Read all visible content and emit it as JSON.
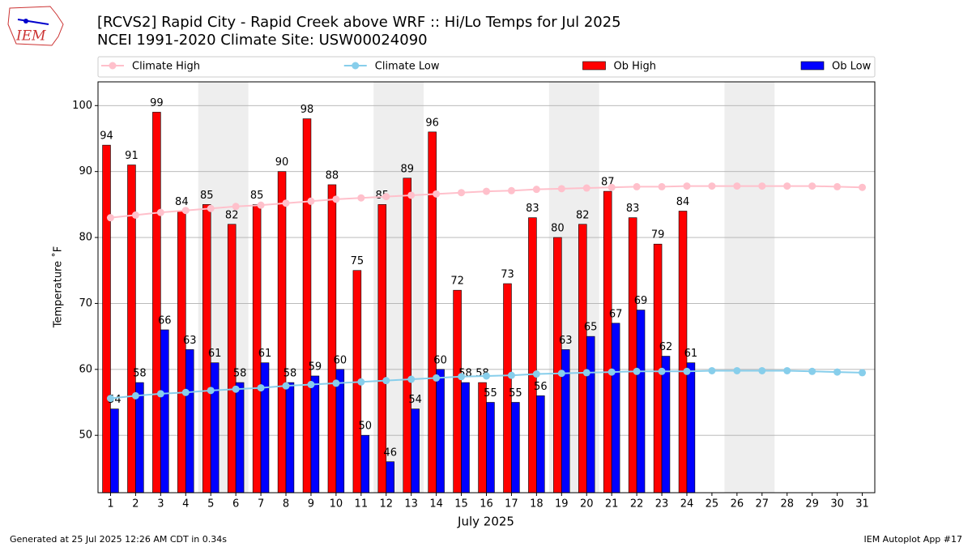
{
  "logo_text": "IEM",
  "footer_left": "Generated at 25 Jul 2025 12:26 AM CDT in 0.34s",
  "footer_right": "IEM Autoplot App #17",
  "chart_data": {
    "type": "bar",
    "title": "[RCVS2] Rapid City - Rapid Creek above WRF :: Hi/Lo Temps for Jul 2025",
    "subtitle": "NCEI 1991-2020 Climate Site: USW00024090",
    "x_label": "July 2025",
    "y_label": "Temperature ˚F",
    "categories": [
      "1",
      "2",
      "3",
      "4",
      "5",
      "6",
      "7",
      "8",
      "9",
      "10",
      "11",
      "12",
      "13",
      "14",
      "15",
      "16",
      "17",
      "18",
      "19",
      "20",
      "21",
      "22",
      "23",
      "24",
      "25",
      "26",
      "27",
      "28",
      "29",
      "30",
      "31"
    ],
    "series": [
      {
        "name": "Climate High",
        "type": "line",
        "color": "#ffc0cb",
        "values": [
          83.0,
          83.4,
          83.8,
          84.1,
          84.4,
          84.7,
          84.9,
          85.2,
          85.5,
          85.8,
          86.0,
          86.2,
          86.4,
          86.6,
          86.8,
          87.0,
          87.1,
          87.3,
          87.4,
          87.5,
          87.6,
          87.7,
          87.7,
          87.8,
          87.8,
          87.8,
          87.8,
          87.8,
          87.8,
          87.7,
          87.6
        ]
      },
      {
        "name": "Climate Low",
        "type": "line",
        "color": "#87ceeb",
        "values": [
          55.6,
          56.0,
          56.3,
          56.5,
          56.8,
          57.0,
          57.2,
          57.5,
          57.7,
          57.9,
          58.1,
          58.3,
          58.5,
          58.7,
          58.9,
          59.0,
          59.1,
          59.3,
          59.4,
          59.5,
          59.6,
          59.7,
          59.7,
          59.7,
          59.8,
          59.8,
          59.8,
          59.8,
          59.7,
          59.6,
          59.5
        ]
      },
      {
        "name": "Ob High",
        "type": "bar",
        "color": "#ff0000",
        "values": [
          94,
          91,
          99,
          84,
          85,
          82,
          85,
          90,
          98,
          88,
          75,
          85,
          89,
          96,
          72,
          58,
          73,
          83,
          80,
          82,
          87,
          83,
          79,
          84,
          null,
          null,
          null,
          null,
          null,
          null,
          null
        ]
      },
      {
        "name": "Ob Low",
        "type": "bar",
        "color": "#0000ff",
        "values": [
          54,
          58,
          66,
          63,
          61,
          58,
          61,
          58,
          59,
          60,
          50,
          46,
          54,
          60,
          58,
          55,
          55,
          56,
          63,
          65,
          67,
          69,
          62,
          61,
          null,
          null,
          null,
          null,
          null,
          null,
          null
        ]
      }
    ],
    "ylim": [
      41.3,
      103.6
    ],
    "yticks": [
      50,
      60,
      70,
      80,
      90,
      100
    ],
    "grid": true,
    "legend": "top"
  }
}
